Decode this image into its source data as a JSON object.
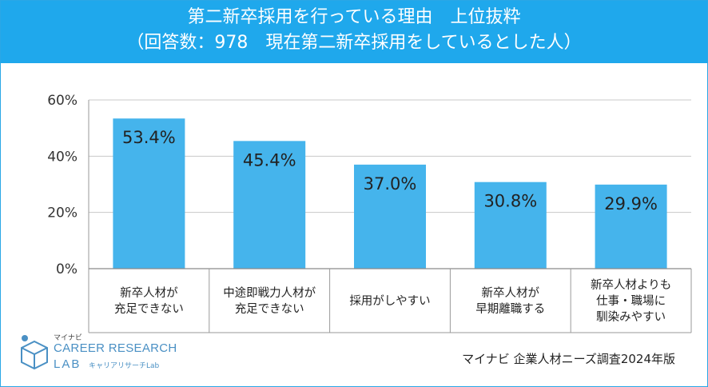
{
  "header": {
    "title_line1": "第二新卒採用を行っている理由　上位抜粋",
    "title_line2": "（回答数：978　現在第二新卒採用をしているとした人）"
  },
  "colors": {
    "header_bg": "#1fa8ec",
    "bar": "#45b4ec",
    "grid": "#c8c8c8"
  },
  "chart_data": {
    "type": "bar",
    "title": "第二新卒採用を行っている理由　上位抜粋",
    "subtitle": "（回答数：978　現在第二新卒採用をしているとした人）",
    "categories": [
      [
        "新卒人材が",
        "充足できない"
      ],
      [
        "中途即戦力人材が",
        "充足できない"
      ],
      [
        "採用がしやすい"
      ],
      [
        "新卒人材が",
        "早期離職する"
      ],
      [
        "新卒人材よりも",
        "仕事・職場に",
        "馴染みやすい"
      ]
    ],
    "values": [
      53.4,
      45.4,
      37.0,
      30.8,
      29.9
    ],
    "value_labels": [
      "53.4%",
      "45.4%",
      "37.0%",
      "30.8%",
      "29.9%"
    ],
    "yticks": [
      "0%",
      "20%",
      "40%",
      "60%"
    ],
    "ytick_values": [
      0,
      20,
      40,
      60
    ],
    "ylim": [
      0,
      60
    ],
    "grid": true
  },
  "source": "マイナビ 企業人材ニーズ調査2024年版",
  "logo": {
    "small": "マイナビ",
    "main": "CAREER RESEARCH",
    "lab": "LAB",
    "sub": "キャリアリサーチLab"
  }
}
